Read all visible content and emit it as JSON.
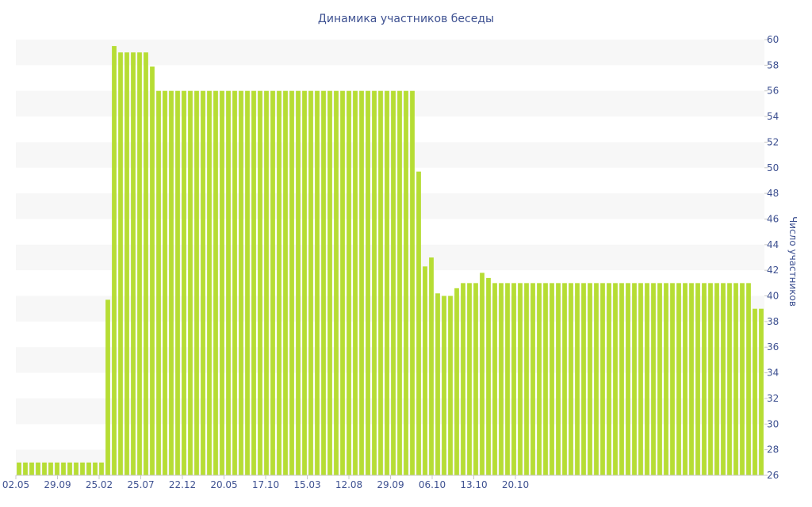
{
  "chart_data": {
    "type": "bar",
    "title": "Динамика участников беседы",
    "xlabel": "",
    "ylabel": "Число участников",
    "y_axis_side": "right",
    "ylim": [
      26,
      60
    ],
    "yticks": [
      26,
      28,
      30,
      32,
      34,
      36,
      38,
      40,
      42,
      44,
      46,
      48,
      50,
      52,
      54,
      56,
      58,
      60
    ],
    "grid": "alternating horizontal bands",
    "xtick_labels": [
      "02.05",
      "29.09",
      "25.02",
      "25.07",
      "22.12",
      "20.05",
      "17.10",
      "15.03",
      "12.08",
      "29.09",
      "06.10",
      "13.10",
      "20.10"
    ],
    "values": [
      27,
      27,
      27,
      27,
      27,
      27,
      27,
      27,
      27,
      27,
      27,
      27,
      27,
      27,
      39.7,
      59.5,
      59,
      59,
      59,
      59,
      59,
      57.9,
      56,
      56,
      56,
      56,
      56,
      56,
      56,
      56,
      56,
      56,
      56,
      56,
      56,
      56,
      56,
      56,
      56,
      56,
      56,
      56,
      56,
      56,
      56,
      56,
      56,
      56,
      56,
      56,
      56,
      56,
      56,
      56,
      56,
      56,
      56,
      56,
      56,
      56,
      56,
      56,
      56,
      49.7,
      42.3,
      43,
      40.2,
      40,
      40,
      40.6,
      41,
      41,
      41,
      41.8,
      41.4,
      41,
      41,
      41,
      41,
      41,
      41,
      41,
      41,
      41,
      41,
      41,
      41,
      41,
      41,
      41,
      41,
      41,
      41,
      41,
      41,
      41,
      41,
      41,
      41,
      41,
      41,
      41,
      41,
      41,
      41,
      41,
      41,
      41,
      41,
      41,
      41,
      41,
      41,
      41,
      41,
      41,
      39,
      39
    ],
    "colors": {
      "bar": "#b6dd34",
      "text": "#3e5191",
      "band": "#f7f7f7"
    }
  }
}
